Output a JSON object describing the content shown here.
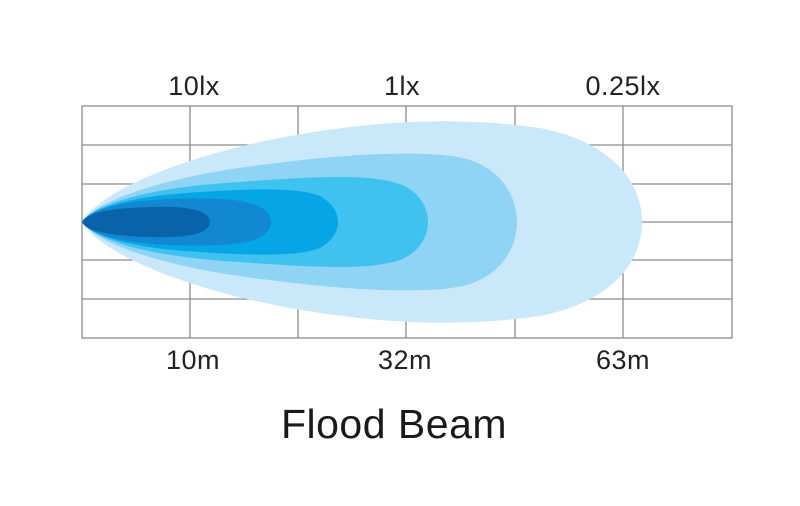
{
  "title": "Flood Beam",
  "lux_labels": [
    "10lx",
    "1lx",
    "0.25lx"
  ],
  "distance_labels": [
    "10m",
    "32m",
    "63m"
  ],
  "beam_colors": [
    "#c9e9fa",
    "#8fd3f5",
    "#3fc2f0",
    "#06a6e6",
    "#1287d2",
    "#0a62a8"
  ]
}
